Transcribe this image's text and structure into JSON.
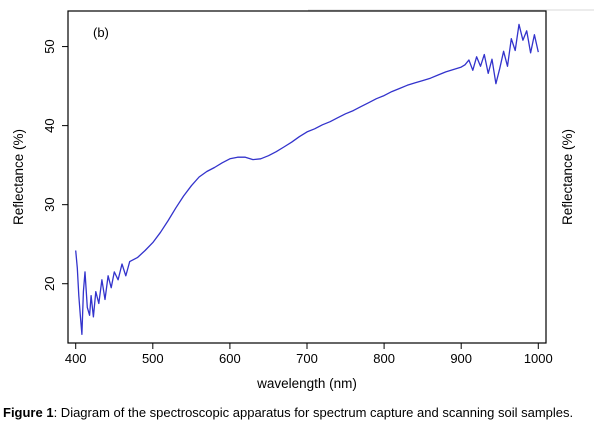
{
  "chart_data": {
    "type": "line",
    "panel_label": "(b)",
    "xlabel": "wavelength (nm)",
    "ylabel": "Reflectance (%)",
    "ylabel_right": "Reflectance (%)",
    "xlim": [
      390,
      1010
    ],
    "ylim": [
      12.5,
      54.5
    ],
    "x_ticks": [
      400,
      500,
      600,
      700,
      800,
      900,
      1000
    ],
    "y_ticks": [
      20,
      30,
      40,
      50
    ],
    "grid": false,
    "colors": {
      "line": "#3333cc",
      "axis": "#000000"
    },
    "series": [
      {
        "x": [
          400,
          402,
          404,
          406,
          408,
          410,
          412,
          415,
          418,
          420,
          423,
          426,
          430,
          434,
          438,
          442,
          446,
          450,
          455,
          460,
          465,
          470,
          480,
          490,
          500,
          510,
          520,
          530,
          540,
          550,
          560,
          570,
          580,
          590,
          600,
          610,
          620,
          630,
          640,
          650,
          660,
          670,
          680,
          690,
          700,
          710,
          720,
          730,
          740,
          750,
          760,
          770,
          780,
          790,
          800,
          810,
          820,
          830,
          840,
          850,
          860,
          870,
          880,
          890,
          900,
          905,
          910,
          915,
          920,
          925,
          930,
          935,
          940,
          945,
          950,
          955,
          960,
          965,
          970,
          975,
          980,
          985,
          990,
          995,
          1000
        ],
        "y": [
          24.2,
          22.0,
          18.5,
          16.0,
          13.6,
          19.0,
          21.5,
          17.0,
          16.0,
          18.5,
          15.8,
          19.0,
          17.5,
          20.5,
          18.0,
          21.0,
          19.5,
          21.5,
          20.5,
          22.5,
          21.0,
          22.8,
          23.3,
          24.2,
          25.2,
          26.5,
          28.0,
          29.6,
          31.1,
          32.4,
          33.5,
          34.2,
          34.7,
          35.3,
          35.8,
          36.0,
          36.0,
          35.7,
          35.8,
          36.2,
          36.7,
          37.3,
          37.9,
          38.6,
          39.2,
          39.6,
          40.1,
          40.5,
          41.0,
          41.5,
          41.9,
          42.4,
          42.9,
          43.4,
          43.8,
          44.3,
          44.7,
          45.1,
          45.4,
          45.7,
          46.0,
          46.4,
          46.8,
          47.1,
          47.4,
          47.7,
          48.3,
          47.0,
          48.7,
          47.5,
          49.0,
          46.6,
          48.4,
          45.3,
          47.2,
          49.4,
          47.5,
          51.0,
          49.5,
          52.8,
          50.8,
          52.0,
          49.2,
          51.5,
          49.3
        ]
      }
    ]
  },
  "caption": {
    "label": "Figure 1",
    "text": ": Diagram of the spectroscopic apparatus for spectrum capture and scanning soil samples."
  }
}
